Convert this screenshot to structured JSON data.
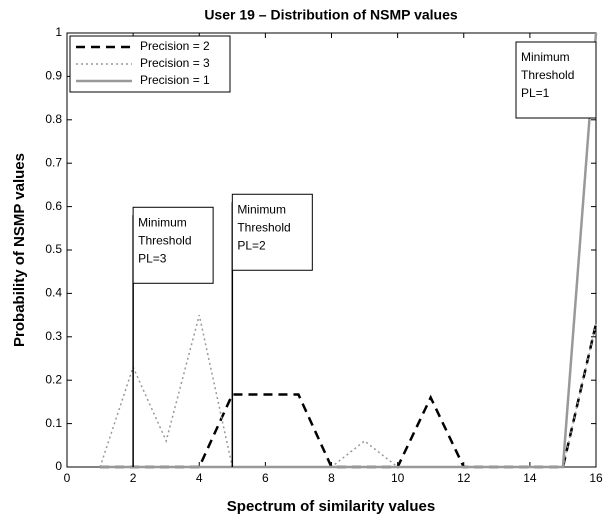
{
  "chart_data": {
    "type": "line",
    "title": "User 19 – Distribution of NSMP values",
    "xlabel": "Spectrum of similarity values",
    "ylabel": "Probability of NSMP values",
    "x": [
      1,
      2,
      3,
      4,
      5,
      6,
      7,
      8,
      9,
      10,
      11,
      12,
      13,
      14,
      15,
      16
    ],
    "series": [
      {
        "name": "Precision = 2",
        "color": "#000000",
        "style": "dashed",
        "values": [
          0,
          0,
          0,
          0,
          0.167,
          0.167,
          0.167,
          0,
          0,
          0,
          0.16,
          0,
          0,
          0,
          0,
          0.33
        ]
      },
      {
        "name": "Precision = 3",
        "color": "#999999",
        "style": "dotted",
        "values": [
          0,
          0.23,
          0.06,
          0.35,
          0,
          0,
          0,
          0,
          0.06,
          0,
          0,
          0,
          0,
          0,
          0,
          0.33
        ]
      },
      {
        "name": "Precision = 1",
        "color": "#999999",
        "style": "solid",
        "values": [
          0,
          0,
          0,
          0,
          0,
          0,
          0,
          0,
          0,
          0,
          0,
          0,
          0,
          0,
          0,
          1.0
        ]
      }
    ],
    "annotations": [
      {
        "lines": [
          "Minimum",
          "Threshold",
          "PL=3"
        ],
        "x": 2,
        "y": 0.58
      },
      {
        "lines": [
          "Minimum",
          "Threshold",
          "PL=2"
        ],
        "x": 5,
        "y": 0.61
      },
      {
        "lines": [
          "Minimum",
          "Threshold",
          "PL=1"
        ]
      }
    ],
    "xlim": [
      0,
      16
    ],
    "xticks": [
      0,
      2,
      4,
      6,
      8,
      10,
      12,
      14,
      16
    ],
    "ylim": [
      0,
      1
    ],
    "yticks": [
      0,
      0.1,
      0.2,
      0.3,
      0.4,
      0.5,
      0.6,
      0.7,
      0.8,
      0.9,
      1
    ],
    "legend": "upper left"
  }
}
